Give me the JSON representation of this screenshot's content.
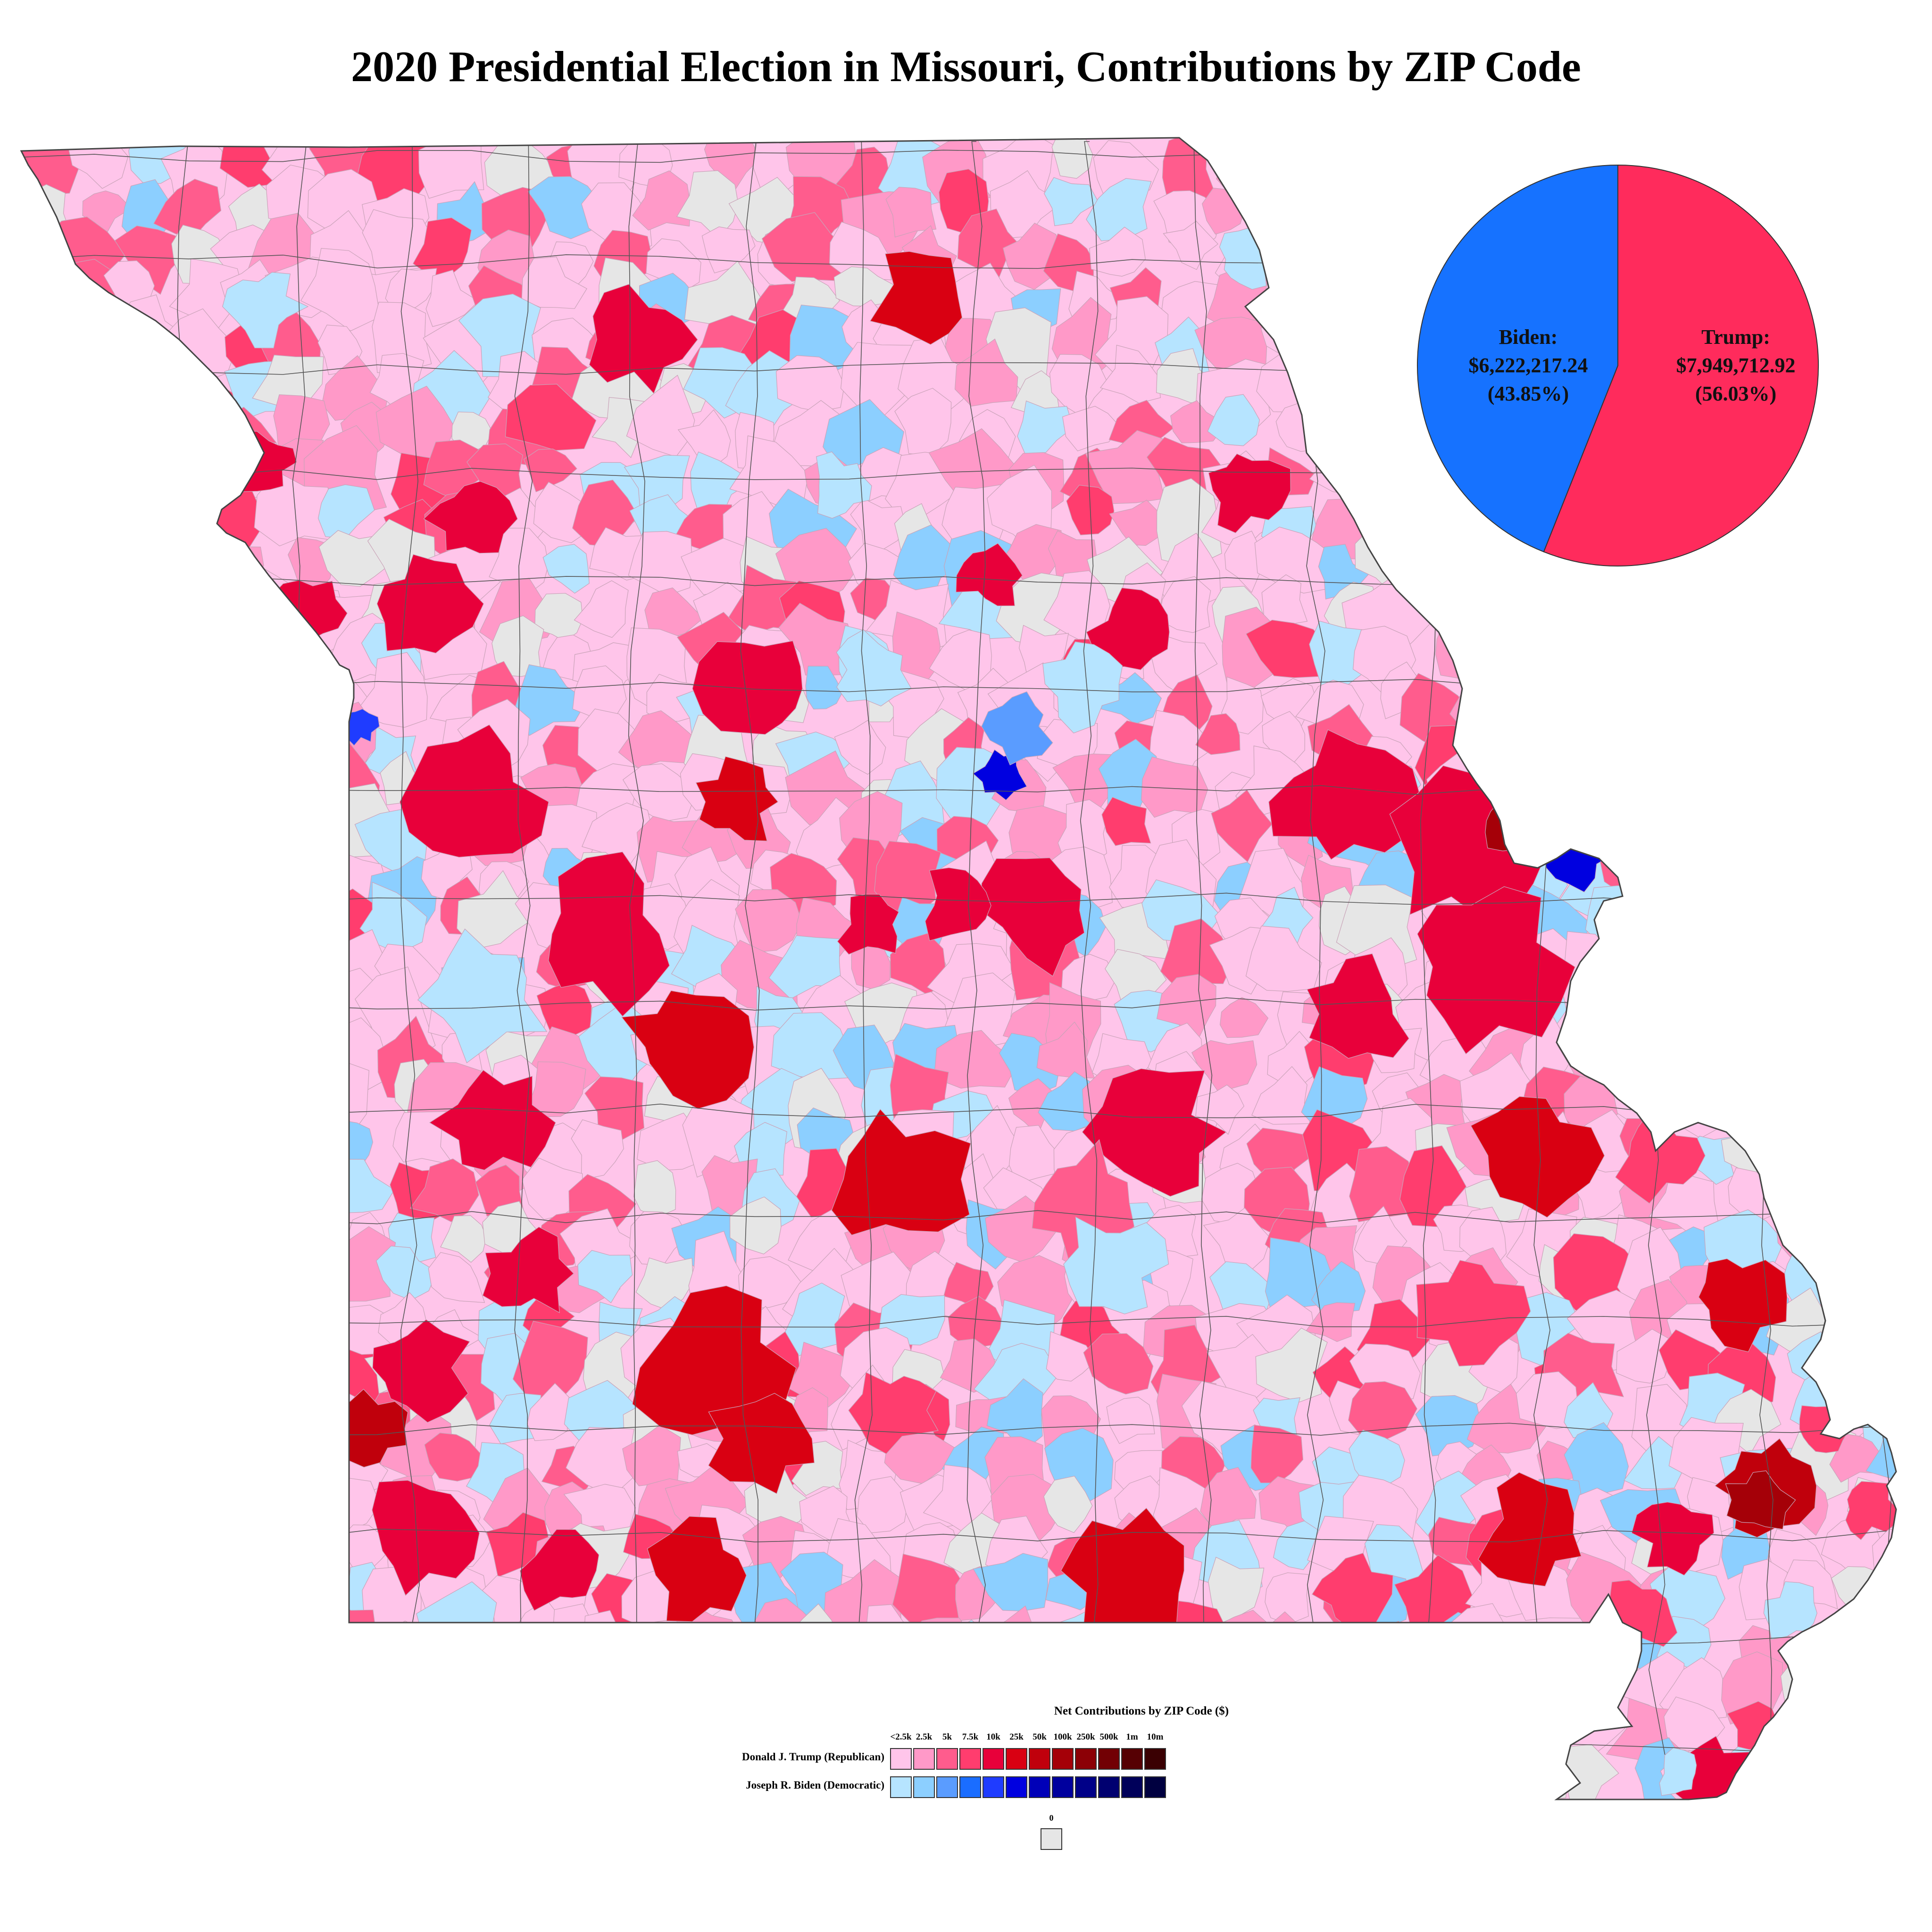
{
  "title": "2020 Presidential Election in Missouri, Contributions by ZIP Code",
  "colors": {
    "trump": "#ff2b5c",
    "biden": "#1672ff",
    "no_contributions": "#e6e6e6",
    "background": "#ffffff",
    "border": "#555555"
  },
  "pie": {
    "biden": {
      "label": "Biden:",
      "amount": "$6,222,217.24",
      "percent": "(43.85%)",
      "share": 43.85,
      "color": "#1672ff"
    },
    "trump": {
      "label": "Trump:",
      "amount": "$7,949,712.92",
      "percent": "(56.03%)",
      "share": 56.03,
      "color": "#ff2b5c"
    }
  },
  "legend": {
    "title": "Net Contributions by ZIP Code ($)",
    "ticks": [
      "<2.5k",
      "2.5k",
      "5k",
      "7.5k",
      "10k",
      "25k",
      "50k",
      "100k",
      "250k",
      "500k",
      "1m",
      "10m"
    ],
    "trump_label": "Donald J. Trump  (Republican)",
    "biden_label": "Joseph R. Biden (Democratic)",
    "trump_colors": [
      "#ffc5ea",
      "#ff99c8",
      "#ff5c8d",
      "#ff3d6e",
      "#e8003a",
      "#d90012",
      "#c0000c",
      "#a50008",
      "#8c0006",
      "#720004",
      "#560003",
      "#3a0002"
    ],
    "biden_colors": [
      "#b6e4ff",
      "#8ccfff",
      "#5a9cff",
      "#1a6dff",
      "#1f3cff",
      "#0000e0",
      "#0000b8",
      "#00009e",
      "#000088",
      "#000070",
      "#00005a",
      "#000040"
    ],
    "zero_label": "0",
    "zero_color": "#e6e6e6"
  }
}
